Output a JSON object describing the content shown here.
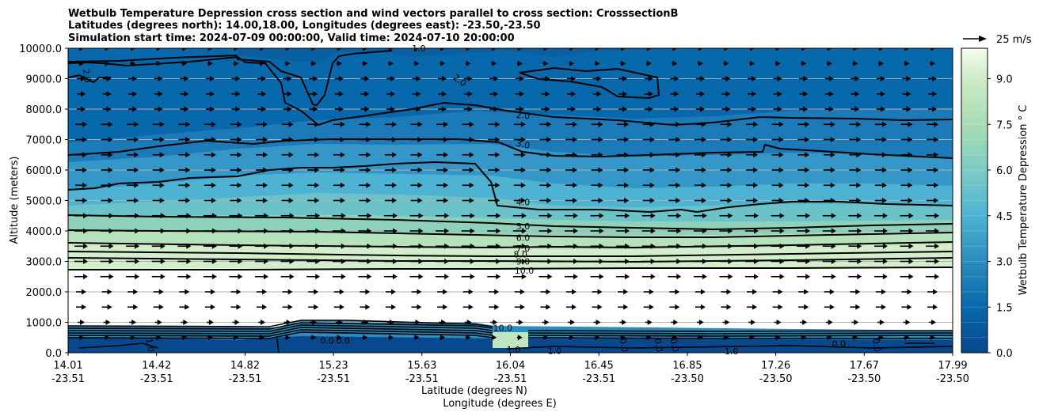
{
  "chart_data": {
    "type": "contour_cross_section",
    "title": [
      "Wetbulb Temperature Depression cross section and wind vectors parallel to cross section: CrosssectionB",
      "Latitudes (degrees north): 14.00,18.00, Longitudes (degrees east): -23.50,-23.50",
      "Simulation start time: 2024-07-09 00:00:00, Valid time: 2024-07-10 20:00:00"
    ],
    "ylabel": "Altitude (meters)",
    "xlabel_lat": "Latitude (degrees N)",
    "xlabel_lon": "Longitude (degrees E)",
    "ylim": [
      0,
      10000
    ],
    "yticks": [
      "0.0",
      "1000.0",
      "2000.0",
      "3000.0",
      "4000.0",
      "5000.0",
      "6000.0",
      "7000.0",
      "8000.0",
      "9000.0",
      "10000.0"
    ],
    "xticks": [
      {
        "lat": "14.01",
        "lon": "-23.51"
      },
      {
        "lat": "14.42",
        "lon": "-23.51"
      },
      {
        "lat": "14.82",
        "lon": "-23.51"
      },
      {
        "lat": "15.23",
        "lon": "-23.51"
      },
      {
        "lat": "15.63",
        "lon": "-23.51"
      },
      {
        "lat": "16.04",
        "lon": "-23.51"
      },
      {
        "lat": "16.45",
        "lon": "-23.51"
      },
      {
        "lat": "16.85",
        "lon": "-23.50"
      },
      {
        "lat": "17.26",
        "lon": "-23.50"
      },
      {
        "lat": "17.67",
        "lon": "-23.50"
      },
      {
        "lat": "17.99",
        "lon": "-23.50"
      }
    ],
    "colorbar": {
      "label": "Wetbulb Temperature Depression $^\\circ$C",
      "label_text": "Wetbulb Temperature Depression ° C",
      "range": [
        0,
        10
      ],
      "ticks": [
        "0.0",
        "1.5",
        "3.0",
        "4.5",
        "6.0",
        "7.5",
        "9.0"
      ]
    },
    "quiver_key": "25 m/s",
    "contour_levels_labeled": [
      "1.0",
      "2.0",
      "3.0",
      "4.0",
      "5.0",
      "6.0",
      "7.0",
      "8.0",
      "9.0",
      "10.0"
    ],
    "contour_labels": [
      {
        "text": "1.0",
        "x": 0.555,
        "y": 10000,
        "rot": 0
      },
      {
        "text": "2.0",
        "x": 0.03,
        "y": 9100,
        "rot": 80
      },
      {
        "text": "2.0",
        "x": 0.62,
        "y": 8950,
        "rot": 35
      },
      {
        "text": "2.0",
        "x": 0.72,
        "y": 7800,
        "rot": 5
      },
      {
        "text": "3.0",
        "x": 0.72,
        "y": 6850,
        "rot": 12
      },
      {
        "text": "4.0",
        "x": 0.72,
        "y": 4950,
        "rot": 0
      },
      {
        "text": "5.0",
        "x": 0.72,
        "y": 4150,
        "rot": 0
      },
      {
        "text": "6.0",
        "x": 0.72,
        "y": 3780,
        "rot": 0
      },
      {
        "text": "7.0",
        "x": 0.72,
        "y": 3430,
        "rot": 0
      },
      {
        "text": "8.0",
        "x": 0.716,
        "y": 3230,
        "rot": 0
      },
      {
        "text": "9.0",
        "x": 0.72,
        "y": 3000,
        "rot": 0
      },
      {
        "text": "10.0",
        "x": 0.722,
        "y": 2700,
        "rot": 0
      },
      {
        "text": "10.0",
        "x": 0.688,
        "y": 820,
        "rot": 0
      },
      {
        "text": "0.0",
        "x": 0.41,
        "y": 400,
        "rot": 0
      },
      {
        "text": "0.0",
        "x": 0.435,
        "y": 400,
        "rot": 0
      },
      {
        "text": "1.0",
        "x": 0.705,
        "y": 110,
        "rot": 0
      },
      {
        "text": "1.0",
        "x": 0.77,
        "y": 60,
        "rot": 0
      },
      {
        "text": "1.0",
        "x": 0.13,
        "y": 250,
        "rot": 80
      },
      {
        "text": "1.0",
        "x": 1.05,
        "y": 50,
        "rot": 0
      },
      {
        "text": "0.0",
        "x": 0.88,
        "y": 250,
        "rot": 80
      },
      {
        "text": "0.0",
        "x": 0.935,
        "y": 250,
        "rot": 80
      },
      {
        "text": "0.0",
        "x": 0.96,
        "y": 250,
        "rot": 80
      },
      {
        "text": "0.0",
        "x": 1.22,
        "y": 300,
        "rot": 0
      },
      {
        "text": "0.0",
        "x": 1.28,
        "y": 250,
        "rot": 80
      }
    ]
  }
}
